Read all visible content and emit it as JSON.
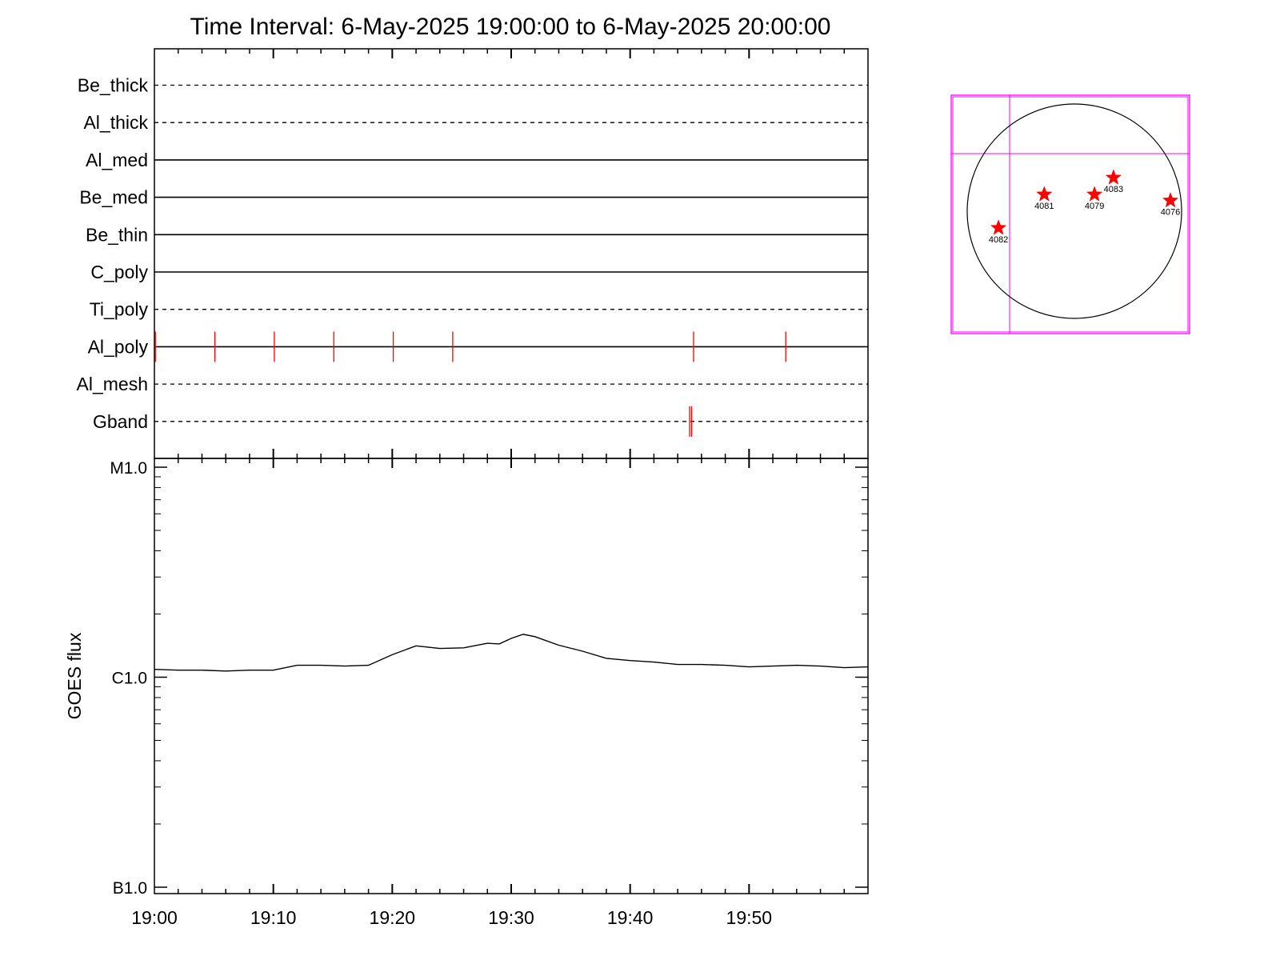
{
  "title": "Time Interval:  6-May-2025 19:00:00 to  6-May-2025 20:00:00",
  "colors": {
    "axes": "#000000",
    "event_marks": "#ff0000",
    "goes_curve": "#000000",
    "fov_box": "#ff00ff",
    "ar_star": "#ff0000"
  },
  "chart_data": [
    {
      "type": "line",
      "panel": "filter-timeline",
      "x_range": [
        "19:00",
        "20:00"
      ],
      "rows": [
        {
          "name": "Be_thick",
          "style": "dashed",
          "events": []
        },
        {
          "name": "Al_thick",
          "style": "dashed",
          "events": []
        },
        {
          "name": "Al_med",
          "style": "solid",
          "events": []
        },
        {
          "name": "Be_med",
          "style": "solid",
          "events": []
        },
        {
          "name": "Be_thin",
          "style": "solid",
          "events": []
        },
        {
          "name": "C_poly",
          "style": "solid",
          "events": []
        },
        {
          "name": "Ti_poly",
          "style": "dashed",
          "events": []
        },
        {
          "name": "Al_poly",
          "style": "solid",
          "events": [
            "19:00:05",
            "19:05:05",
            "19:10:05",
            "19:15:05",
            "19:20:05",
            "19:25:05",
            "19:45:20",
            "19:53:05"
          ]
        },
        {
          "name": "Al_mesh",
          "style": "dashed",
          "events": []
        },
        {
          "name": "Gband",
          "style": "dashed",
          "events": [
            "19:45:00",
            "19:45:10"
          ]
        }
      ]
    },
    {
      "type": "line",
      "panel": "goes-flux",
      "ylabel": "GOES flux",
      "y_scale": "log",
      "y_ticks": [
        {
          "label": "M1.0",
          "value": 1e-05
        },
        {
          "label": "C1.0",
          "value": 1e-06
        },
        {
          "label": "B1.0",
          "value": 1e-07
        }
      ],
      "ylim": [
        1e-07,
        1e-05
      ],
      "x_ticks": [
        "19:00",
        "19:10",
        "19:20",
        "19:30",
        "19:40",
        "19:50"
      ],
      "x_range": [
        "19:00",
        "20:00"
      ],
      "series": [
        {
          "x": [
            "19:00",
            "19:02",
            "19:04",
            "19:06",
            "19:08",
            "19:10",
            "19:12",
            "19:14",
            "19:16",
            "19:18",
            "19:20",
            "19:22",
            "19:24",
            "19:26",
            "19:28",
            "19:29",
            "19:30",
            "19:31",
            "19:32",
            "19:34",
            "19:36",
            "19:38",
            "19:40",
            "19:42",
            "19:44",
            "19:46",
            "19:48",
            "19:50",
            "19:52",
            "19:54",
            "19:56",
            "19:58",
            "20:00"
          ],
          "y": [
            1.09e-06,
            1.08e-06,
            1.08e-06,
            1.07e-06,
            1.08e-06,
            1.08e-06,
            1.14e-06,
            1.14e-06,
            1.13e-06,
            1.14e-06,
            1.28e-06,
            1.41e-06,
            1.37e-06,
            1.38e-06,
            1.45e-06,
            1.44e-06,
            1.53e-06,
            1.6e-06,
            1.56e-06,
            1.42e-06,
            1.33e-06,
            1.23e-06,
            1.2e-06,
            1.18e-06,
            1.15e-06,
            1.15e-06,
            1.14e-06,
            1.12e-06,
            1.13e-06,
            1.14e-06,
            1.13e-06,
            1.11e-06,
            1.12e-06
          ]
        }
      ]
    }
  ],
  "solar_disk": {
    "active_regions": [
      {
        "label": "4082",
        "x_arcsec": -680,
        "y_arcsec": -150
      },
      {
        "label": "4081",
        "x_arcsec": -270,
        "y_arcsec": 150
      },
      {
        "label": "4079",
        "x_arcsec": 180,
        "y_arcsec": 150
      },
      {
        "label": "4083",
        "x_arcsec": 350,
        "y_arcsec": 300
      },
      {
        "label": "4076",
        "x_arcsec": 860,
        "y_arcsec": 95
      }
    ]
  }
}
